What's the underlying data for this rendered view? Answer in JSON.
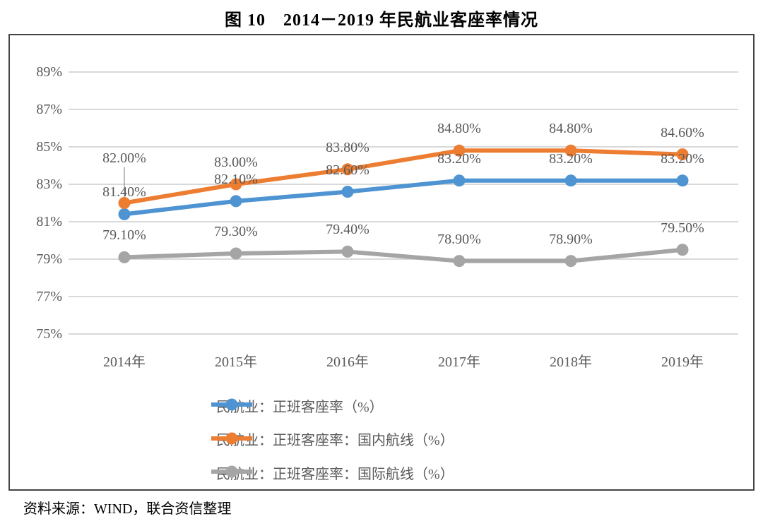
{
  "title": "图 10　2014－2019 年民航业客座率情况",
  "source_note": "资料来源：WIND，联合资信整理",
  "colors": {
    "blue": "#4E94D2",
    "orange": "#ED7D31",
    "gray": "#A5A5A5",
    "grid": "#D9D9D9",
    "axis_text": "#595959",
    "leader_line": "#A6A6A6",
    "border": "#444444"
  },
  "chart_data": {
    "type": "line",
    "title": "图 10　2014－2019 年民航业客座率情况",
    "categories": [
      "2014年",
      "2015年",
      "2016年",
      "2017年",
      "2018年",
      "2019年"
    ],
    "series": [
      {
        "name": "民航业：正班客座率（%）",
        "color_key": "blue",
        "values": [
          81.4,
          82.1,
          82.6,
          83.2,
          83.2,
          83.2
        ],
        "labels": [
          "81.40%",
          "82.10%",
          "82.60%",
          "83.20%",
          "83.20%",
          "83.20%"
        ]
      },
      {
        "name": "民航业：正班客座率：国内航线（%）",
        "color_key": "orange",
        "values": [
          82.0,
          83.0,
          83.8,
          84.8,
          84.8,
          84.6
        ],
        "labels": [
          "82.00%",
          "83.00%",
          "83.80%",
          "84.80%",
          "84.80%",
          "84.60%"
        ]
      },
      {
        "name": "民航业：正班客座率：国际航线（%）",
        "color_key": "gray",
        "values": [
          79.1,
          79.3,
          79.4,
          78.9,
          78.9,
          79.5
        ],
        "labels": [
          "79.10%",
          "79.30%",
          "79.40%",
          "78.90%",
          "78.90%",
          "79.50%"
        ]
      }
    ],
    "y_axis": {
      "min": 75,
      "max": 89,
      "step": 2,
      "tick_labels": [
        "89%",
        "87%",
        "85%",
        "83%",
        "81%",
        "79%",
        "77%",
        "75%"
      ]
    },
    "xlabel": "",
    "ylabel": "",
    "grid": true,
    "legend_position": "bottom-inside",
    "data_labels_shown": true
  }
}
